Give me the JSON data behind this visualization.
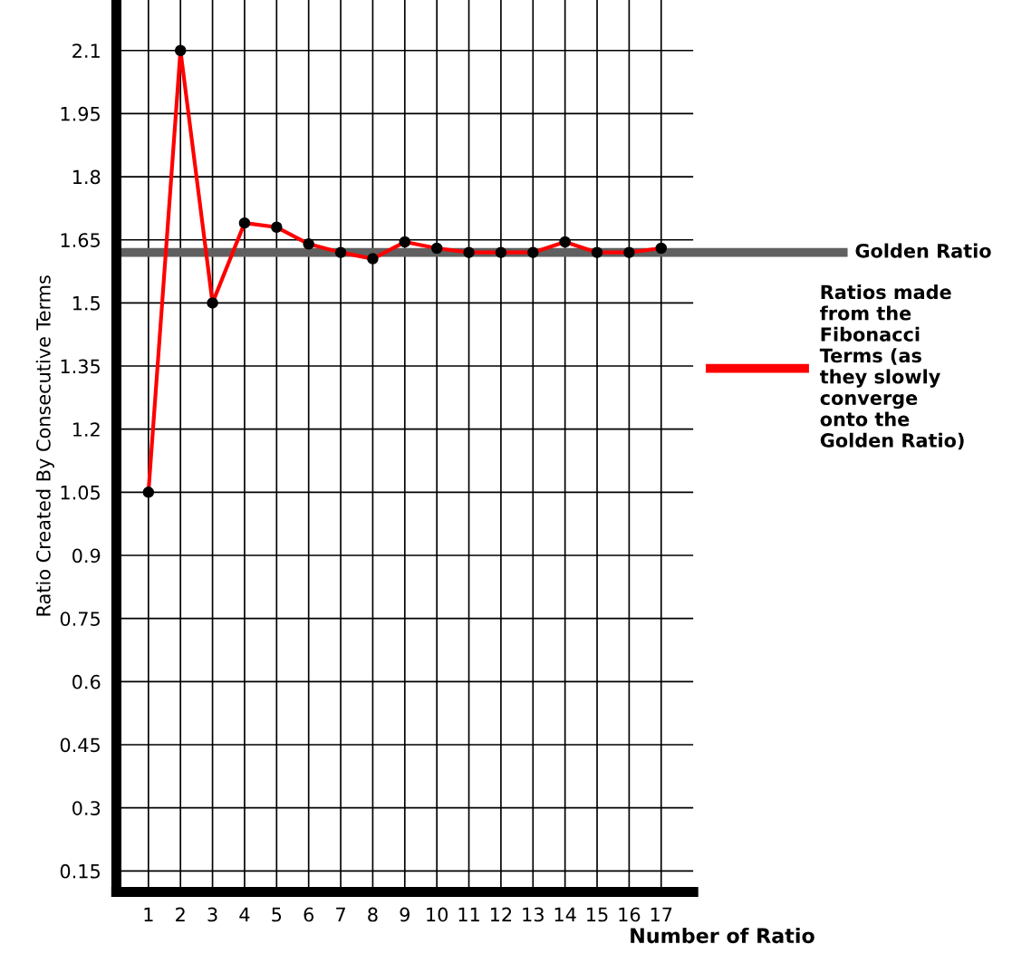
{
  "chart_data": {
    "type": "line",
    "xlabel": "Number of Ratio",
    "ylabel": "Ratio Created By Consecutive Terms",
    "x": [
      1,
      2,
      3,
      4,
      5,
      6,
      7,
      8,
      9,
      10,
      11,
      12,
      13,
      14,
      15,
      16,
      17
    ],
    "series": [
      {
        "name": "Ratios made\nfrom the\nFibonacci\nTerms (as\nthey slowly\nconverge\nonto the\nGolden Ratio)",
        "color": "#ff0000",
        "values": [
          1.05,
          2.1,
          1.5,
          1.69,
          1.68,
          1.64,
          1.62,
          1.605,
          1.645,
          1.63,
          1.62,
          1.62,
          1.62,
          1.645,
          1.62,
          1.62,
          1.63
        ]
      }
    ],
    "ref_lines": [
      {
        "axis": "y",
        "value": 1.62,
        "label": "Golden Ratio",
        "color": "#606060"
      }
    ],
    "xlim": [
      0,
      18
    ],
    "ylim": [
      0.1,
      2.22
    ],
    "xticks": [
      1,
      2,
      3,
      4,
      5,
      6,
      7,
      8,
      9,
      10,
      11,
      12,
      13,
      14,
      15,
      16,
      17
    ],
    "yticks": [
      0.15,
      0.3,
      0.45,
      0.6,
      0.75,
      0.9,
      1.05,
      1.2,
      1.35,
      1.5,
      1.65,
      1.8,
      1.95,
      2.1
    ],
    "grid": true,
    "marker": "circle",
    "legend": "right"
  }
}
